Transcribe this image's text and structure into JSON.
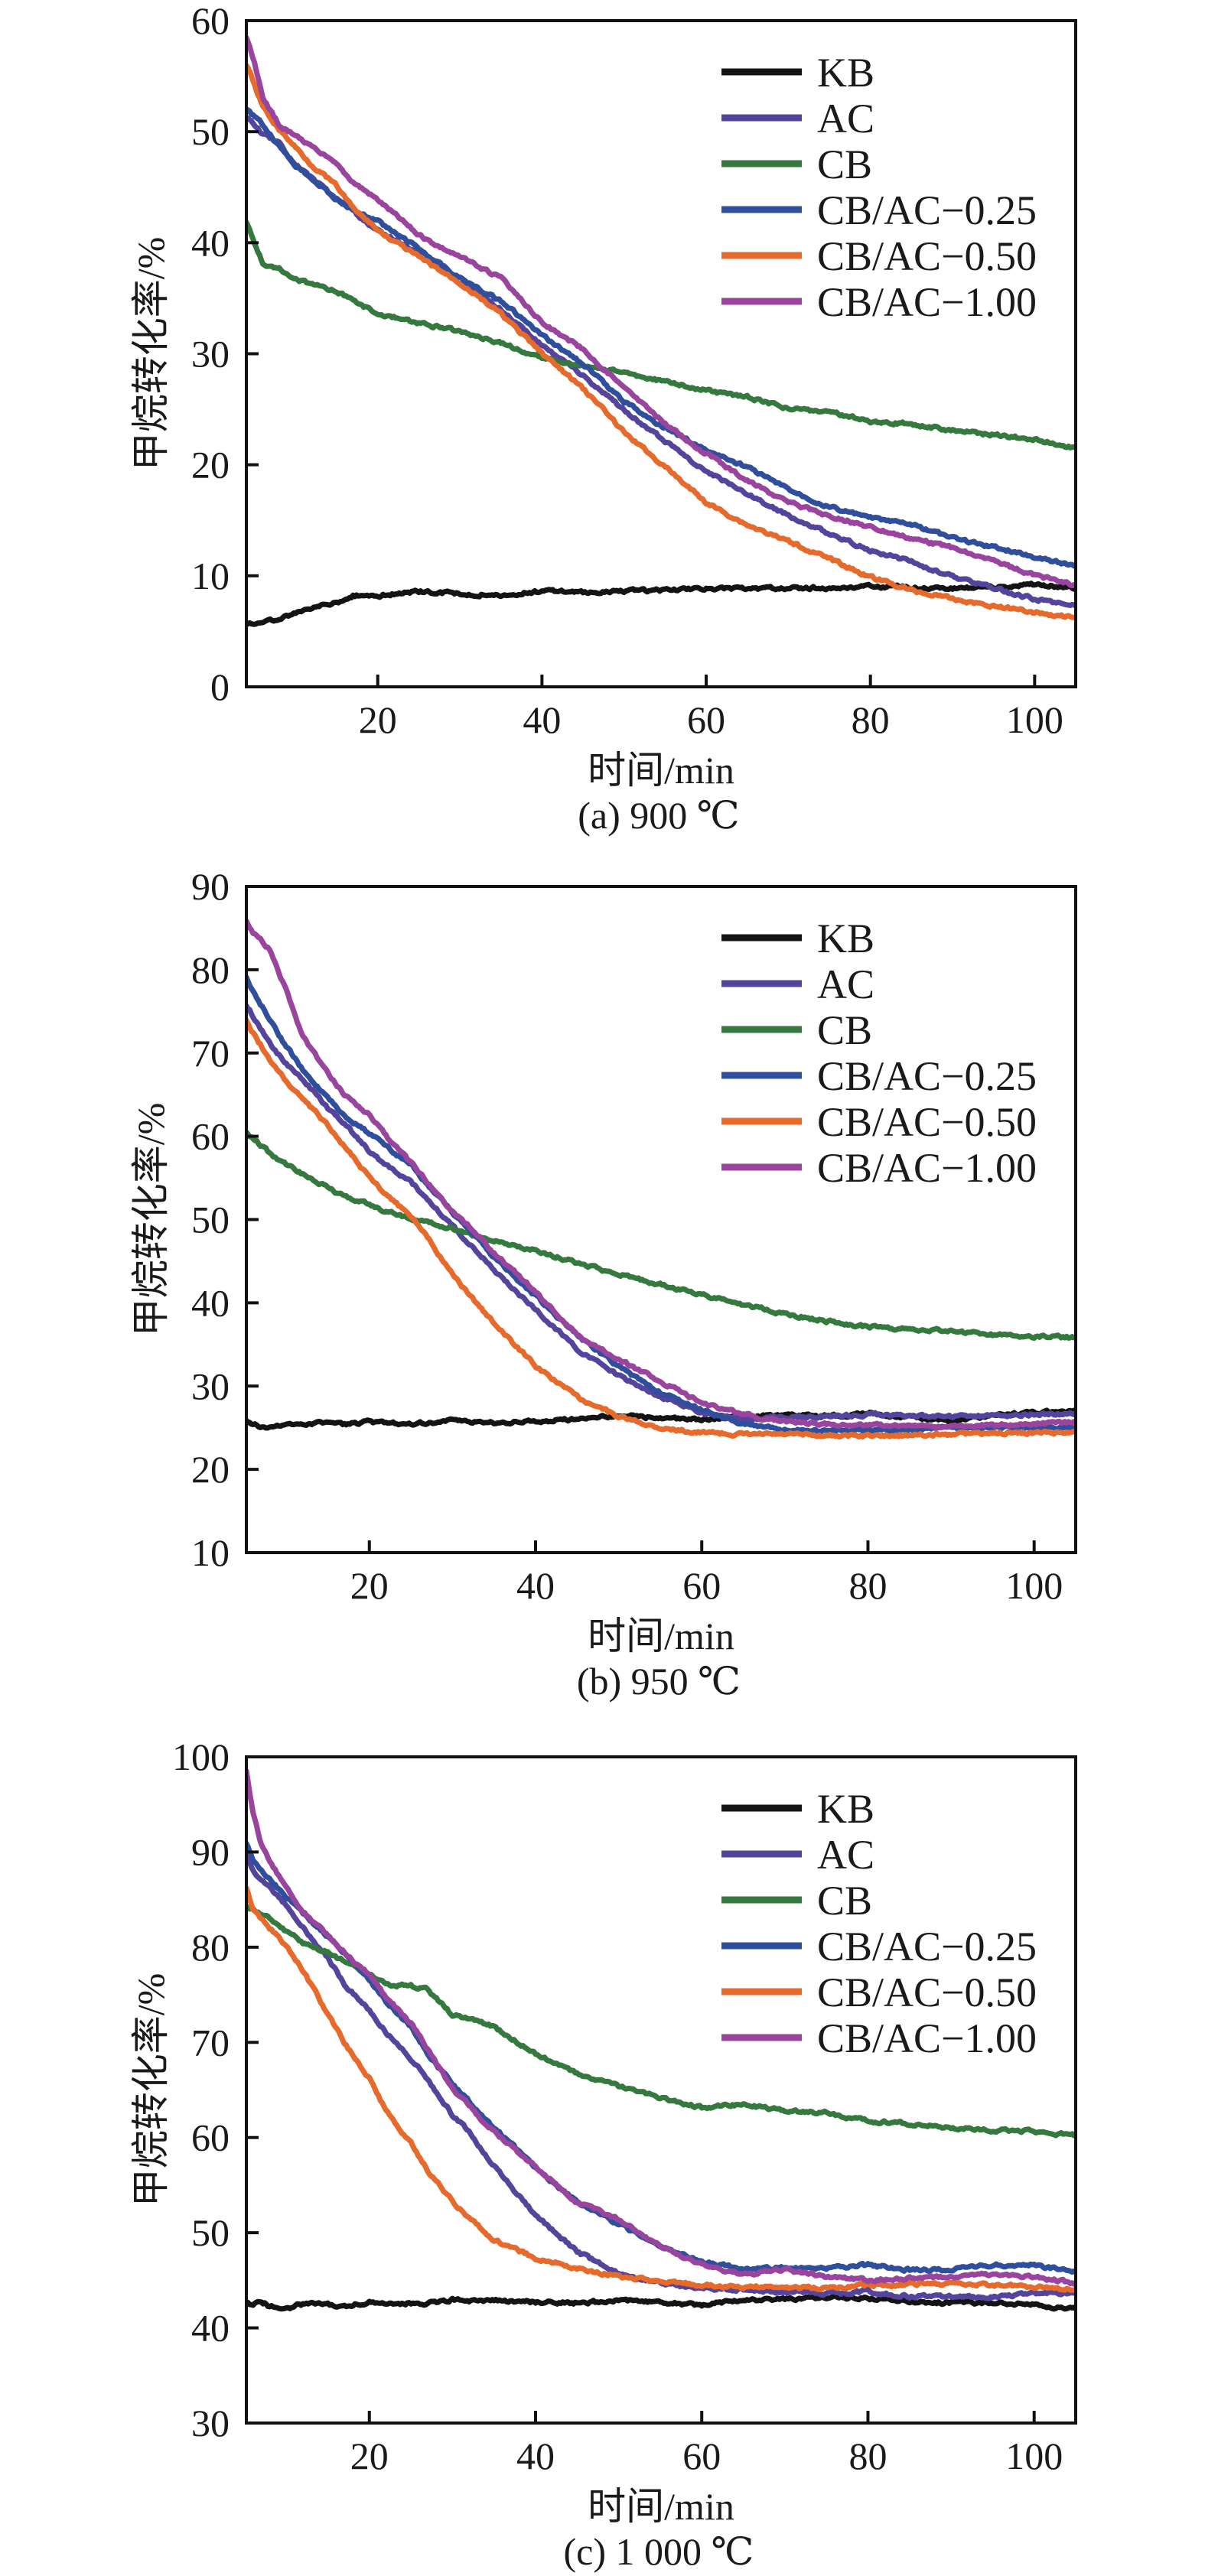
{
  "chart_data": [
    {
      "type": "line",
      "title": "(a) 900 ℃",
      "xlabel": "时间/min",
      "ylabel": "甲烷转化率/%",
      "xlim": [
        4,
        105
      ],
      "ylim": [
        0,
        60
      ],
      "xticks": [
        20,
        40,
        60,
        80,
        100
      ],
      "yticks": [
        0,
        10,
        20,
        30,
        40,
        50,
        60
      ],
      "grid": false,
      "legend_position": "top-right",
      "x": [
        4,
        5,
        6,
        8,
        10,
        12,
        15,
        17,
        20,
        25,
        30,
        35,
        40,
        45,
        50,
        55,
        60,
        65,
        70,
        75,
        80,
        85,
        90,
        95,
        100,
        105
      ],
      "series": [
        {
          "name": "KB",
          "color": "#141414",
          "values": [
            5.6,
            5.8,
            6.0,
            6.1,
            6.7,
            7.1,
            7.6,
            8.2,
            8.2,
            8.6,
            8.4,
            8.3,
            8.6,
            8.5,
            8.6,
            8.7,
            8.9,
            8.8,
            8.9,
            8.9,
            9.1,
            8.9,
            8.9,
            9.0,
            9.2,
            8.9
          ]
        },
        {
          "name": "AC",
          "color": "#55449b",
          "values": [
            51.2,
            50.6,
            49.8,
            49.0,
            47.0,
            45.8,
            43.9,
            42.8,
            41.1,
            39.1,
            36.4,
            34.0,
            30.8,
            28.1,
            24.9,
            22.1,
            19.4,
            17.4,
            15.4,
            13.8,
            12.3,
            11.3,
            9.9,
            8.9,
            7.9,
            7.3
          ]
        },
        {
          "name": "CB",
          "color": "#35793f",
          "values": [
            41.9,
            39.9,
            38.1,
            37.7,
            36.8,
            36.2,
            35.6,
            34.8,
            33.6,
            32.8,
            32.0,
            31.0,
            29.6,
            28.9,
            28.3,
            27.5,
            26.7,
            26.1,
            25.1,
            24.7,
            23.9,
            23.7,
            23.1,
            22.7,
            22.3,
            21.5
          ]
        },
        {
          "name": "CB/AC−0.25",
          "color": "#2f4f9c",
          "values": [
            52.0,
            51.3,
            50.6,
            48.6,
            47.0,
            45.8,
            43.9,
            43.0,
            41.9,
            39.5,
            36.8,
            34.8,
            31.6,
            29.1,
            25.7,
            23.3,
            21.3,
            19.8,
            17.8,
            16.2,
            15.2,
            14.6,
            13.4,
            12.6,
            11.7,
            10.9
          ]
        },
        {
          "name": "CB/AC−0.50",
          "color": "#e56a2c",
          "values": [
            56.1,
            54.2,
            52.2,
            50.2,
            48.6,
            47.0,
            45.1,
            43.1,
            41.1,
            38.7,
            36.4,
            33.6,
            30.0,
            26.9,
            22.9,
            19.8,
            16.6,
            14.6,
            13.1,
            11.5,
            9.9,
            8.7,
            7.9,
            7.3,
            6.7,
            6.2
          ]
        },
        {
          "name": "CB/AC−1.00",
          "color": "#9a459d",
          "values": [
            58.5,
            56.1,
            53.0,
            50.6,
            49.6,
            48.6,
            47.0,
            45.5,
            43.9,
            40.7,
            38.7,
            36.8,
            32.8,
            30.4,
            26.9,
            23.7,
            21.0,
            18.6,
            16.6,
            15.4,
            14.4,
            13.4,
            12.5,
            11.3,
            10.1,
            9.1
          ]
        }
      ]
    },
    {
      "type": "line",
      "title": "(b) 950 ℃",
      "xlabel": "时间/min",
      "ylabel": "甲烷转化率/%",
      "xlim": [
        5.2,
        105
      ],
      "ylim": [
        10,
        90
      ],
      "xticks": [
        20,
        40,
        60,
        80,
        100
      ],
      "yticks": [
        10,
        20,
        30,
        40,
        50,
        60,
        70,
        80,
        90
      ],
      "grid": false,
      "legend_position": "top-right",
      "x": [
        5.2,
        6,
        8,
        10,
        12,
        15,
        17,
        20,
        22,
        25,
        27,
        30,
        32,
        35,
        40,
        45,
        50,
        55,
        60,
        65,
        70,
        75,
        80,
        85,
        90,
        95,
        100,
        105
      ],
      "series": [
        {
          "name": "KB",
          "color": "#141414",
          "values": [
            25.8,
            25.3,
            25.0,
            25.3,
            25.5,
            25.6,
            25.4,
            25.7,
            25.6,
            25.5,
            25.6,
            25.8,
            25.7,
            25.6,
            25.7,
            26.1,
            26.5,
            26.2,
            26.0,
            26.3,
            26.5,
            26.4,
            26.7,
            26.3,
            25.8,
            26.5,
            26.8,
            27.0
          ]
        },
        {
          "name": "AC",
          "color": "#55449b",
          "values": [
            75.8,
            74.5,
            71.2,
            68.7,
            66.8,
            63.4,
            61.5,
            58.2,
            56.6,
            54.5,
            52.5,
            49.2,
            47.2,
            43.9,
            39.2,
            34.5,
            31.3,
            28.7,
            26.8,
            26.0,
            26.3,
            26.4,
            26.6,
            26.4,
            26.3,
            26.4,
            26.6,
            26.8
          ]
        },
        {
          "name": "CB",
          "color": "#35793f",
          "values": [
            60.5,
            59.8,
            58.0,
            56.6,
            55.5,
            53.8,
            52.8,
            51.8,
            51.0,
            50.2,
            49.6,
            49.0,
            48.2,
            47.5,
            46.3,
            44.8,
            43.4,
            42.2,
            41.0,
            39.8,
            38.7,
            37.8,
            37.1,
            36.8,
            36.6,
            36.2,
            36.0,
            35.8
          ]
        },
        {
          "name": "CB/AC−0.25",
          "color": "#2f4f9c",
          "values": [
            79.0,
            77.5,
            74.0,
            70.8,
            68.0,
            64.5,
            62.5,
            60.3,
            58.8,
            56.6,
            54.2,
            50.8,
            48.8,
            45.5,
            40.8,
            36.1,
            32.4,
            29.2,
            27.1,
            25.5,
            24.7,
            24.6,
            24.7,
            24.8,
            25.0,
            25.0,
            25.0,
            24.9
          ]
        },
        {
          "name": "CB/AC−0.50",
          "color": "#e56a2c",
          "values": [
            74.0,
            72.5,
            69.2,
            66.6,
            64.5,
            61.3,
            58.8,
            55.0,
            53.0,
            50.3,
            47.8,
            43.4,
            41.0,
            37.6,
            32.4,
            28.7,
            26.3,
            25.0,
            24.4,
            24.2,
            24.2,
            24.1,
            24.0,
            24.1,
            24.2,
            24.3,
            24.4,
            24.5
          ]
        },
        {
          "name": "CB/AC−1.00",
          "color": "#9a459d",
          "values": [
            85.8,
            84.5,
            82.5,
            77.5,
            72.0,
            67.5,
            65.0,
            62.6,
            60.0,
            56.8,
            54.5,
            51.0,
            49.2,
            46.0,
            41.3,
            36.1,
            33.2,
            30.6,
            28.0,
            26.6,
            25.7,
            25.4,
            25.3,
            25.2,
            25.1,
            25.3,
            25.5,
            25.6
          ]
        }
      ]
    },
    {
      "type": "line",
      "title": "(c) 1 000 ℃",
      "xlabel": "时间/min",
      "ylabel": "甲烷转化率/%",
      "xlim": [
        5.2,
        105
      ],
      "ylim": [
        30,
        100
      ],
      "xticks": [
        20,
        40,
        60,
        80,
        100
      ],
      "yticks": [
        30,
        40,
        50,
        60,
        70,
        80,
        90,
        100
      ],
      "grid": false,
      "legend_position": "top-right",
      "x": [
        5.2,
        6,
        7,
        8,
        10,
        12,
        15,
        17,
        20,
        22,
        25,
        27,
        30,
        32,
        35,
        40,
        45,
        50,
        55,
        60,
        65,
        70,
        75,
        80,
        85,
        90,
        95,
        100,
        105
      ],
      "series": [
        {
          "name": "KB",
          "color": "#141414",
          "values": [
            42.6,
            42.4,
            42.8,
            42.3,
            42.0,
            42.5,
            42.4,
            42.3,
            42.7,
            42.5,
            42.6,
            42.5,
            43.0,
            42.8,
            42.9,
            42.7,
            42.6,
            42.9,
            42.7,
            42.4,
            42.9,
            43.0,
            43.2,
            43.1,
            42.8,
            42.6,
            42.7,
            42.4,
            42.0
          ]
        },
        {
          "name": "AC",
          "color": "#55449b",
          "values": [
            89.9,
            88.1,
            87.2,
            86.2,
            84.4,
            82.1,
            78.9,
            76.1,
            73.4,
            71.1,
            68.3,
            66.1,
            62.4,
            60.6,
            57.0,
            51.8,
            48.0,
            45.7,
            44.7,
            44.2,
            44.0,
            43.8,
            43.6,
            43.8,
            43.3,
            43.3,
            43.3,
            43.6,
            43.6
          ]
        },
        {
          "name": "CB",
          "color": "#35793f",
          "values": [
            84.2,
            83.9,
            83.5,
            83.0,
            81.7,
            80.5,
            79.4,
            78.5,
            77.1,
            76.1,
            75.9,
            75.5,
            72.9,
            72.5,
            71.6,
            68.8,
            66.7,
            65.4,
            64.2,
            63.1,
            63.5,
            62.8,
            62.6,
            61.7,
            61.5,
            61.0,
            60.8,
            60.6,
            60.2
          ]
        },
        {
          "name": "CB/AC−0.25",
          "color": "#2f4f9c",
          "values": [
            91.0,
            89.2,
            88.2,
            87.2,
            85.3,
            83.5,
            81.2,
            79.4,
            76.6,
            74.3,
            71.6,
            68.8,
            65.6,
            63.8,
            61.0,
            56.9,
            53.2,
            50.9,
            48.6,
            47.0,
            46.1,
            46.3,
            46.3,
            46.6,
            46.1,
            46.1,
            46.6,
            46.6,
            45.9
          ]
        },
        {
          "name": "CB/AC−0.50",
          "color": "#e56a2c",
          "values": [
            86.2,
            84.0,
            83.0,
            82.0,
            80.2,
            77.5,
            73.0,
            70.0,
            66.2,
            62.8,
            59.4,
            56.6,
            53.3,
            51.5,
            49.3,
            47.3,
            46.3,
            45.4,
            44.9,
            44.5,
            44.3,
            44.3,
            44.2,
            44.5,
            44.5,
            44.7,
            44.5,
            44.3,
            44.0
          ]
        },
        {
          "name": "CB/AC−1.00",
          "color": "#9a459d",
          "values": [
            98.4,
            94.0,
            90.8,
            89.0,
            86.2,
            83.7,
            81.2,
            79.4,
            77.1,
            74.8,
            72.0,
            69.3,
            65.1,
            63.3,
            60.6,
            56.9,
            53.2,
            51.4,
            48.6,
            46.6,
            45.6,
            46.1,
            45.4,
            45.0,
            45.2,
            45.4,
            45.6,
            45.4,
            44.7
          ]
        }
      ]
    }
  ]
}
